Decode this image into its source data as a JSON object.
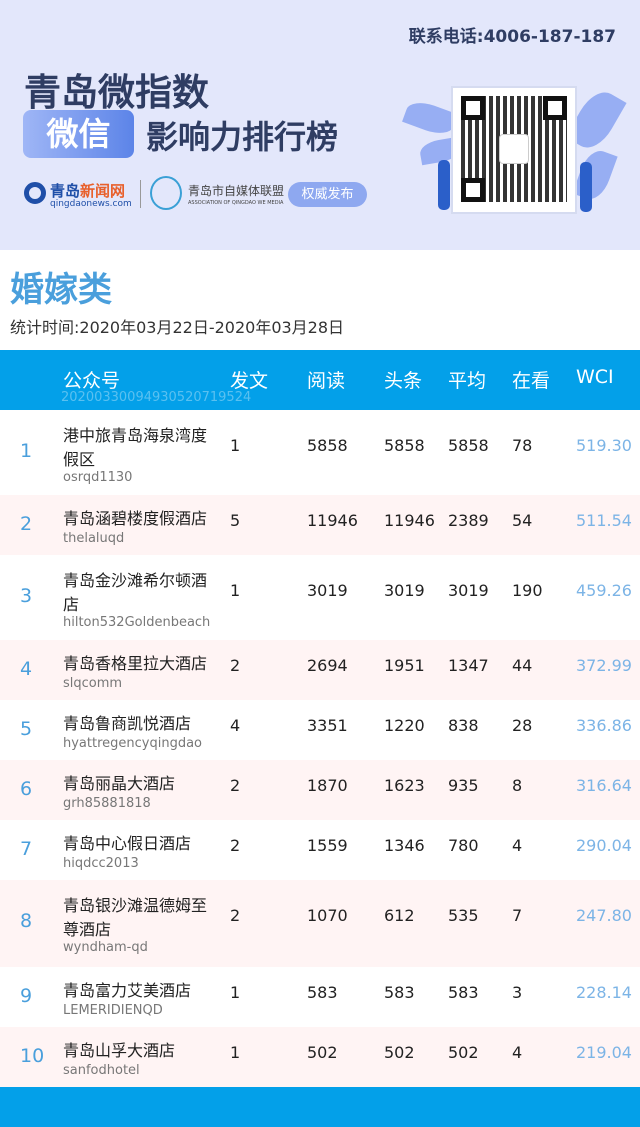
{
  "banner": {
    "phone": "联系电话:4006-187-187",
    "title_line1": "青岛微指数",
    "pill": "微信",
    "title_line2": "影响力排行榜",
    "logo1_name_a": "青岛",
    "logo1_name_b": "新闻网",
    "logo1_domain": "qingdaonews.com",
    "logo2_name": "青岛市自媒体联盟",
    "logo2_en": "ASSOCIATION OF QINGDAO WE MEDIA",
    "badge": "权威发布"
  },
  "category": "婚嫁类",
  "period": "统计时间:2020年03月22日-2020年03月28日",
  "table": {
    "headers": [
      "公众号",
      "发文",
      "阅读",
      "头条",
      "平均",
      "在看",
      "WCI"
    ],
    "watermark": "20200330094930520719524",
    "rows": [
      {
        "rank": "1",
        "name": "港中旅青岛海泉湾度假区",
        "account": "osrqd1130",
        "posts": "1",
        "reads": "5858",
        "headline": "5858",
        "avg": "5858",
        "watching": "78",
        "wci": "519.30"
      },
      {
        "rank": "2",
        "name": "青岛涵碧楼度假酒店",
        "account": "thelaluqd",
        "posts": "5",
        "reads": "11946",
        "headline": "11946",
        "avg": "2389",
        "watching": "54",
        "wci": "511.54"
      },
      {
        "rank": "3",
        "name": "青岛金沙滩希尔顿酒店",
        "account": "hilton532Goldenbeach",
        "posts": "1",
        "reads": "3019",
        "headline": "3019",
        "avg": "3019",
        "watching": "190",
        "wci": "459.26"
      },
      {
        "rank": "4",
        "name": "青岛香格里拉大酒店",
        "account": "slqcomm",
        "posts": "2",
        "reads": "2694",
        "headline": "1951",
        "avg": "1347",
        "watching": "44",
        "wci": "372.99"
      },
      {
        "rank": "5",
        "name": "青岛鲁商凯悦酒店",
        "account": "hyattregencyqingdao",
        "posts": "4",
        "reads": "3351",
        "headline": "1220",
        "avg": "838",
        "watching": "28",
        "wci": "336.86"
      },
      {
        "rank": "6",
        "name": "青岛丽晶大酒店",
        "account": "grh85881818",
        "posts": "2",
        "reads": "1870",
        "headline": "1623",
        "avg": "935",
        "watching": "8",
        "wci": "316.64"
      },
      {
        "rank": "7",
        "name": "青岛中心假日酒店",
        "account": "hiqdcc2013",
        "posts": "2",
        "reads": "1559",
        "headline": "1346",
        "avg": "780",
        "watching": "4",
        "wci": "290.04"
      },
      {
        "rank": "8",
        "name": "青岛银沙滩温德姆至尊酒店",
        "account": "wyndham-qd",
        "posts": "2",
        "reads": "1070",
        "headline": "612",
        "avg": "535",
        "watching": "7",
        "wci": "247.80"
      },
      {
        "rank": "9",
        "name": "青岛富力艾美酒店",
        "account": "LEMERIDIENQD",
        "posts": "1",
        "reads": "583",
        "headline": "583",
        "avg": "583",
        "watching": "3",
        "wci": "228.14"
      },
      {
        "rank": "10",
        "name": "青岛山孚大酒店",
        "account": "sanfodhotel",
        "posts": "1",
        "reads": "502",
        "headline": "502",
        "avg": "502",
        "watching": "4",
        "wci": "219.04"
      }
    ]
  },
  "colors": {
    "header_blue": "#03a0e9",
    "rank_blue": "#4a9fdc",
    "alt_row": "#fff4f4",
    "wci": "#7cb4e6"
  }
}
